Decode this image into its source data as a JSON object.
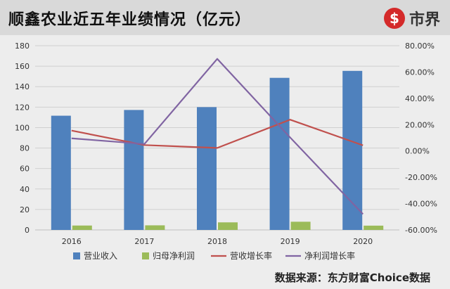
{
  "header": {
    "title": "顺鑫农业近五年业绩情况（亿元）",
    "logo_text": "市界"
  },
  "source": "数据来源：东方财富Choice数据",
  "colors": {
    "revenue": "#4f81bd",
    "net_profit": "#9bbb59",
    "revenue_growth": "#c0504d",
    "profit_growth": "#8064a2",
    "logo": "#d42a2a"
  },
  "chart_data": {
    "type": "bar",
    "categories": [
      "2016",
      "2017",
      "2018",
      "2019",
      "2020"
    ],
    "series": [
      {
        "name": "营业收入",
        "type": "bar",
        "axis": "left",
        "values": [
          111.6,
          117.2,
          120.0,
          148.6,
          155.4
        ]
      },
      {
        "name": "归母净利润",
        "type": "bar",
        "axis": "left",
        "values": [
          4.3,
          4.5,
          7.4,
          8.0,
          4.2
        ]
      },
      {
        "name": "营收增长率",
        "type": "line",
        "axis": "right",
        "values": [
          15.5,
          4.5,
          2.3,
          23.8,
          4.3
        ]
      },
      {
        "name": "净利润增长率",
        "type": "line",
        "axis": "right",
        "values": [
          9.6,
          5.3,
          70.0,
          10.3,
          -48.0
        ]
      }
    ],
    "ylim_left": [
      0,
      180
    ],
    "ylim_right": [
      -60,
      80
    ],
    "left_ticks": [
      "0",
      "20",
      "40",
      "60",
      "80",
      "100",
      "120",
      "140",
      "160",
      "180"
    ],
    "right_ticks": [
      "-60.00%",
      "-40.00%",
      "-20.00%",
      "0.00%",
      "20.00%",
      "40.00%",
      "60.00%",
      "80.00%"
    ],
    "grid": true,
    "legend_position": "bottom"
  }
}
